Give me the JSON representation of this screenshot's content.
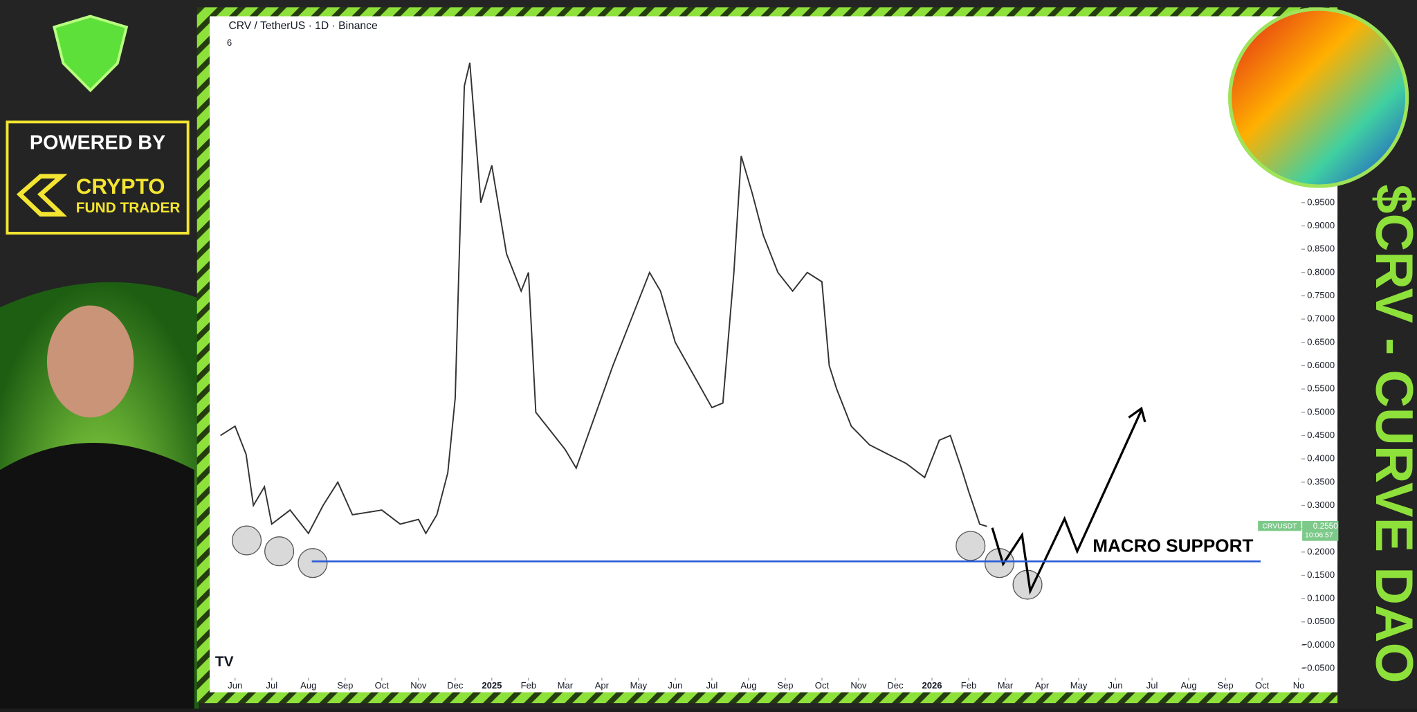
{
  "chart_data": {
    "type": "line",
    "title": "CRV / TetherUS · 1D · Binance",
    "indicator_count": "6",
    "x": [
      -0.4,
      0,
      0.3,
      0.5,
      0.8,
      1.0,
      1.5,
      2.0,
      2.4,
      2.8,
      3.2,
      4.0,
      4.5,
      5.0,
      5.2,
      5.5,
      5.8,
      6.0,
      6.1,
      6.25,
      6.4,
      6.7,
      7.0,
      7.4,
      7.8,
      8.0,
      8.2,
      8.6,
      9.0,
      9.3,
      9.8,
      10.3,
      10.8,
      11.3,
      11.6,
      12.0,
      12.5,
      13.0,
      13.3,
      13.6,
      13.8,
      14.1,
      14.4,
      14.8,
      15.2,
      15.6,
      16.0,
      16.2,
      16.4,
      16.8,
      17.3,
      17.8,
      18.3,
      18.8,
      19.2,
      19.5,
      19.8,
      20.0,
      20.3,
      20.5
    ],
    "series": [
      {
        "name": "CRVUSDT",
        "color": "#333333",
        "values": [
          0.45,
          0.47,
          0.41,
          0.3,
          0.34,
          0.26,
          0.29,
          0.24,
          0.3,
          0.35,
          0.28,
          0.29,
          0.26,
          0.27,
          0.24,
          0.28,
          0.37,
          0.53,
          0.8,
          1.2,
          1.25,
          0.95,
          1.03,
          0.84,
          0.76,
          0.8,
          0.5,
          0.46,
          0.42,
          0.38,
          0.49,
          0.6,
          0.7,
          0.8,
          0.76,
          0.65,
          0.58,
          0.51,
          0.52,
          0.8,
          1.05,
          0.97,
          0.88,
          0.8,
          0.76,
          0.8,
          0.78,
          0.6,
          0.55,
          0.47,
          0.43,
          0.41,
          0.39,
          0.36,
          0.44,
          0.45,
          0.38,
          0.33,
          0.26,
          0.255
        ]
      }
    ],
    "ylim": [
      -0.07,
      1.35
    ],
    "yticks": [
      {
        "value": -0.05,
        "label": "−0.0500"
      },
      {
        "value": 0,
        "label": "−0.0000"
      },
      {
        "value": 0.05,
        "label": "0.0500"
      },
      {
        "value": 0.1,
        "label": "0.1000"
      },
      {
        "value": 0.15,
        "label": "0.1500"
      },
      {
        "value": 0.2,
        "label": "0.2000"
      },
      {
        "value": 0.25,
        "label": "0.2500"
      },
      {
        "value": 0.3,
        "label": "0.3000"
      },
      {
        "value": 0.35,
        "label": "0.3500"
      },
      {
        "value": 0.4,
        "label": "0.4000"
      },
      {
        "value": 0.45,
        "label": "0.4500"
      },
      {
        "value": 0.5,
        "label": "0.5000"
      },
      {
        "value": 0.55,
        "label": "0.5500"
      },
      {
        "value": 0.6,
        "label": "0.6000"
      },
      {
        "value": 0.65,
        "label": "0.6500"
      },
      {
        "value": 0.7,
        "label": "0.7000"
      },
      {
        "value": 0.75,
        "label": "0.7500"
      },
      {
        "value": 0.8,
        "label": "0.8000"
      },
      {
        "value": 0.85,
        "label": "0.8500"
      },
      {
        "value": 0.9,
        "label": "0.9000"
      },
      {
        "value": 0.95,
        "label": "0.9500"
      }
    ],
    "xlim": [
      -0.57,
      29.07
    ],
    "xticks": [
      {
        "value": 0,
        "label": "Jun"
      },
      {
        "value": 1,
        "label": "Jul"
      },
      {
        "value": 2,
        "label": "Aug"
      },
      {
        "value": 3,
        "label": "Sep"
      },
      {
        "value": 4,
        "label": "Oct"
      },
      {
        "value": 5,
        "label": "Nov"
      },
      {
        "value": 6,
        "label": "Dec"
      },
      {
        "value": 7,
        "label": "2025"
      },
      {
        "value": 8,
        "label": "Feb"
      },
      {
        "value": 9,
        "label": "Mar"
      },
      {
        "value": 10,
        "label": "Apr"
      },
      {
        "value": 11,
        "label": "May"
      },
      {
        "value": 12,
        "label": "Jun"
      },
      {
        "value": 13,
        "label": "Jul"
      },
      {
        "value": 14,
        "label": "Aug"
      },
      {
        "value": 15,
        "label": "Sep"
      },
      {
        "value": 16,
        "label": "Oct"
      },
      {
        "value": 17,
        "label": "Nov"
      },
      {
        "value": 18,
        "label": "Dec"
      },
      {
        "value": 19,
        "label": "2026"
      },
      {
        "value": 20,
        "label": "Feb"
      },
      {
        "value": 21,
        "label": "Mar"
      },
      {
        "value": 22,
        "label": "Apr"
      },
      {
        "value": 23,
        "label": "May"
      },
      {
        "value": 24,
        "label": "Jun"
      },
      {
        "value": 25,
        "label": "Jul"
      },
      {
        "value": 26,
        "label": "Aug"
      },
      {
        "value": 27,
        "label": "Sep"
      },
      {
        "value": 28,
        "label": "Oct"
      },
      {
        "value": 29,
        "label": "No"
      }
    ],
    "support": {
      "value": 0.18,
      "color": "#2a5bd7",
      "label": "MACRO SUPPORT"
    },
    "last_price": {
      "value": 0.255,
      "label": "0.2550",
      "countdown": "10:06:57"
    }
  },
  "branding": {
    "powered_by": "POWERED BY",
    "brand_line1": "CRYPTO",
    "brand_line2": "FUND TRADER",
    "headline": "$CRV - CURVE DAO"
  }
}
